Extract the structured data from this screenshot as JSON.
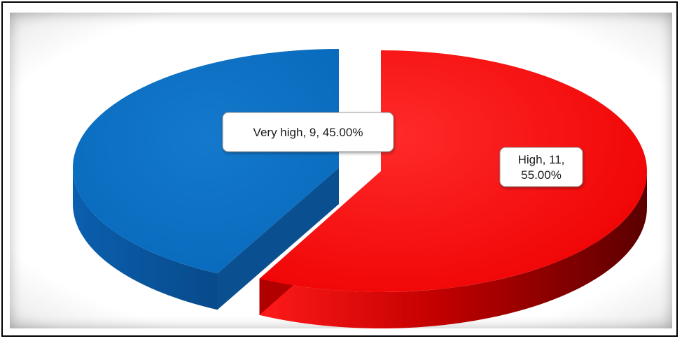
{
  "chart_data": {
    "type": "pie",
    "style": "3d-exploded",
    "title": "",
    "slices": [
      {
        "label": "High",
        "value": 11,
        "percent": "55.00%",
        "color": "#ff0000",
        "shade": "#6a0000",
        "label_lines": [
          "High, 11,",
          "55.00%"
        ]
      },
      {
        "label": "Very high",
        "value": 9,
        "percent": "45.00%",
        "color": "#0a6fc2",
        "shade": "#0a3f75",
        "label_lines": [
          "Very high, 9, 45.00%"
        ]
      }
    ],
    "legend": "none"
  }
}
